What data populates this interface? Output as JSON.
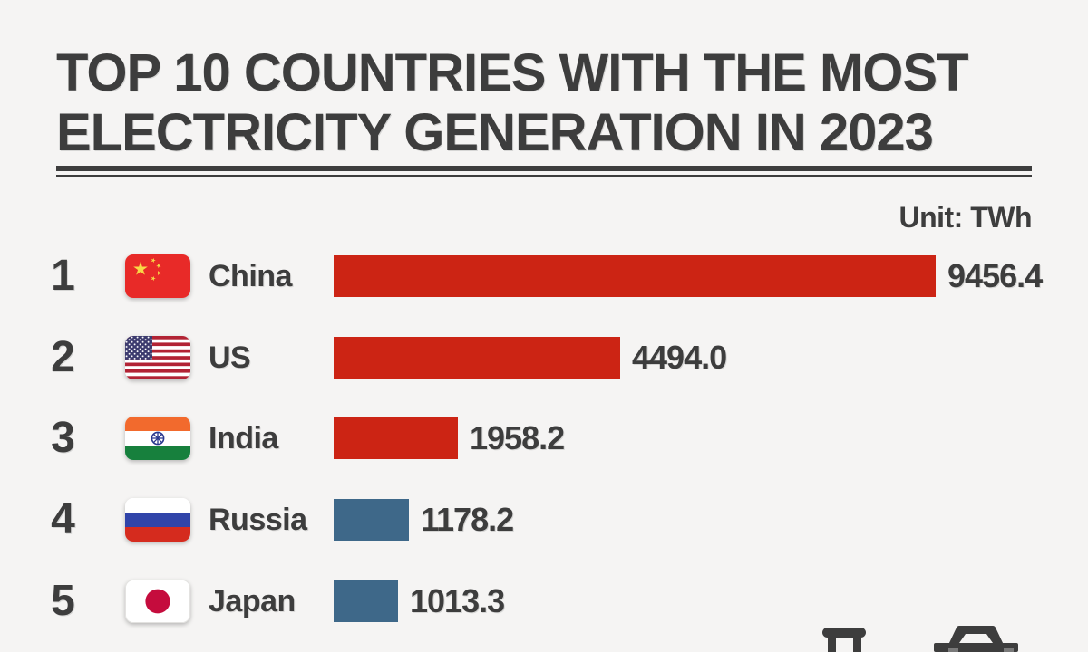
{
  "page": {
    "title_line1": "TOP 10 COUNTRIES WITH THE MOST",
    "title_line2": "ELECTRICITY GENERATION IN 2023",
    "unit_label": "Unit: TWh"
  },
  "colors": {
    "background": "#f5f4f3",
    "text": "#3d3d3d",
    "bar_red": "#cc2414",
    "bar_blue": "#3e6889"
  },
  "chart_data": {
    "type": "bar",
    "orientation": "horizontal",
    "title": "TOP 10 COUNTRIES WITH THE MOST ELECTRICITY GENERATION IN 2023",
    "unit": "TWh",
    "xlim": [
      0,
      9456.4
    ],
    "ranks": [
      1,
      2,
      3,
      4,
      5
    ],
    "categories": [
      "China",
      "US",
      "India",
      "Russia",
      "Japan"
    ],
    "values": [
      9456.4,
      4494.0,
      1958.2,
      1178.2,
      1013.3
    ],
    "value_labels": [
      "9456.4",
      "4494.0",
      "1958.2",
      "1178.2",
      "1013.3"
    ],
    "bar_colors": [
      "#cc2414",
      "#cc2414",
      "#cc2414",
      "#3e6889",
      "#3e6889"
    ],
    "flags": [
      "china-flag",
      "us-flag",
      "india-flag",
      "russia-flag",
      "japan-flag"
    ]
  }
}
